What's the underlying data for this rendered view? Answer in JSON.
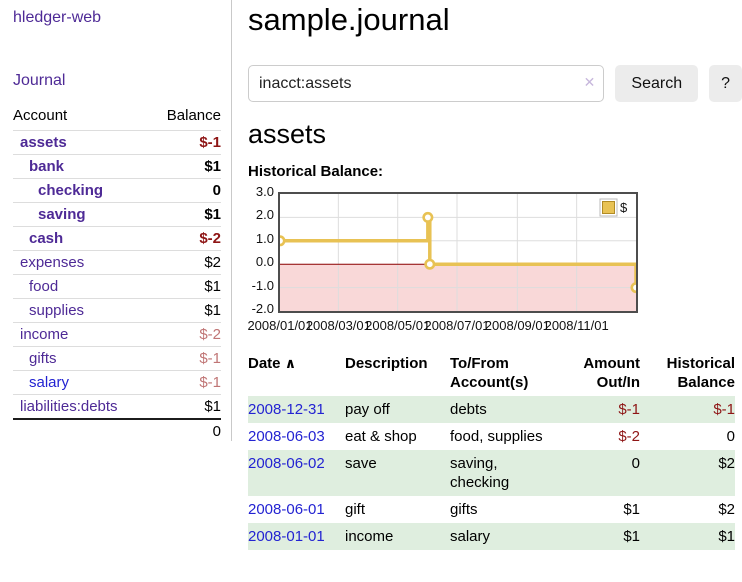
{
  "app": {
    "brand": "hledger-web",
    "nav_journal": "Journal"
  },
  "colors": {
    "accent": "#e8c254",
    "accent_border": "#b18b25",
    "neg_strong": "#8e1515",
    "neg_soft": "#c07575",
    "link_blue": "#2323d2",
    "link_purple": "#4e2a96",
    "row_green": "#dfeedf",
    "neg_fill": "#f9d8d8",
    "zero_line": "#8b0000"
  },
  "sidebar": {
    "headers": {
      "account": "Account",
      "balance": "Balance"
    },
    "accounts": [
      {
        "name": "assets",
        "depth": 0,
        "bold": true,
        "balance": "$-1",
        "balance_class": "neg-strong"
      },
      {
        "name": "bank",
        "depth": 1,
        "bold": true,
        "balance": "$1",
        "balance_class": "pos"
      },
      {
        "name": "checking",
        "depth": 2,
        "bold": true,
        "balance": "0",
        "balance_class": "pos"
      },
      {
        "name": "saving",
        "depth": 2,
        "bold": true,
        "balance": "$1",
        "balance_class": "pos"
      },
      {
        "name": "cash",
        "depth": 1,
        "bold": true,
        "balance": "$-2",
        "balance_class": "neg-strong"
      },
      {
        "name": "expenses",
        "depth": 0,
        "bold": false,
        "balance": "$2",
        "balance_class": "pos"
      },
      {
        "name": "food",
        "depth": 1,
        "bold": false,
        "balance": "$1",
        "balance_class": "pos"
      },
      {
        "name": "supplies",
        "depth": 1,
        "bold": false,
        "balance": "$1",
        "balance_class": "pos"
      },
      {
        "name": "income",
        "depth": 0,
        "bold": false,
        "balance": "$-2",
        "balance_class": "neg-soft"
      },
      {
        "name": "gifts",
        "depth": 1,
        "bold": false,
        "balance": "$-1",
        "balance_class": "neg-soft"
      },
      {
        "name": "salary",
        "depth": 1,
        "bold": false,
        "balance": "$-1",
        "balance_class": "neg-soft",
        "link": "blue"
      },
      {
        "name": "liabilities:debts",
        "depth": 0,
        "bold": false,
        "balance": "$1",
        "balance_class": "pos"
      }
    ],
    "total": "0"
  },
  "main": {
    "title": "sample.journal",
    "search": {
      "value": "inacct:assets",
      "clear_icon": "✕",
      "button_label": "Search",
      "help_label": "?"
    },
    "account_title": "assets"
  },
  "chart_data": {
    "type": "line",
    "step": true,
    "title": "Historical Balance:",
    "ylim": [
      -2,
      3
    ],
    "yticks": [
      3.0,
      2.0,
      1.0,
      0.0,
      -1.0,
      -2.0
    ],
    "ytick_labels": [
      "3.0",
      "2.0",
      "1.0",
      "0.0",
      "-1.0",
      "-2.0"
    ],
    "xmax_days": 366,
    "xticks": [
      {
        "day": 0,
        "label": "2008/01/01"
      },
      {
        "day": 60,
        "label": "2008/03/01"
      },
      {
        "day": 121,
        "label": "2008/05/01"
      },
      {
        "day": 182,
        "label": "2008/07/01"
      },
      {
        "day": 244,
        "label": "2008/09/01"
      },
      {
        "day": 305,
        "label": "2008/11/01"
      }
    ],
    "grid": true,
    "zero_line": true,
    "negative_region_fill": true,
    "legend": {
      "label": "$",
      "position": "top-right"
    },
    "series": [
      {
        "name": "$",
        "points": [
          {
            "date": "2008-01-01",
            "day": 0,
            "value": 1
          },
          {
            "date": "2008-06-01",
            "day": 152,
            "value": 2
          },
          {
            "date": "2008-06-03",
            "day": 154,
            "value": 0
          },
          {
            "date": "2008-12-31",
            "day": 366,
            "value": -1
          }
        ]
      }
    ]
  },
  "register": {
    "headers": {
      "date": "Date",
      "sort_icon": "∧",
      "description": "Description",
      "accounts": "To/From Account(s)",
      "amount": "Amount Out/In",
      "balance": "Historical Balance"
    },
    "rows": [
      {
        "date": "2008-12-31",
        "description": "pay off",
        "accounts": "debts",
        "amount": "$-1",
        "balance": "$-1",
        "amount_neg": true,
        "balance_neg": true
      },
      {
        "date": "2008-06-03",
        "description": "eat & shop",
        "accounts": "food, supplies",
        "amount": "$-2",
        "balance": "0",
        "amount_neg": true,
        "balance_neg": false
      },
      {
        "date": "2008-06-02",
        "description": "save",
        "accounts": "saving,\nchecking",
        "amount": "0",
        "balance": "$2",
        "amount_neg": false,
        "balance_neg": false
      },
      {
        "date": "2008-06-01",
        "description": "gift",
        "accounts": "gifts",
        "amount": "$1",
        "balance": "$2",
        "amount_neg": false,
        "balance_neg": false
      },
      {
        "date": "2008-01-01",
        "description": "income",
        "accounts": "salary",
        "amount": "$1",
        "balance": "$1",
        "amount_neg": false,
        "balance_neg": false
      }
    ]
  }
}
